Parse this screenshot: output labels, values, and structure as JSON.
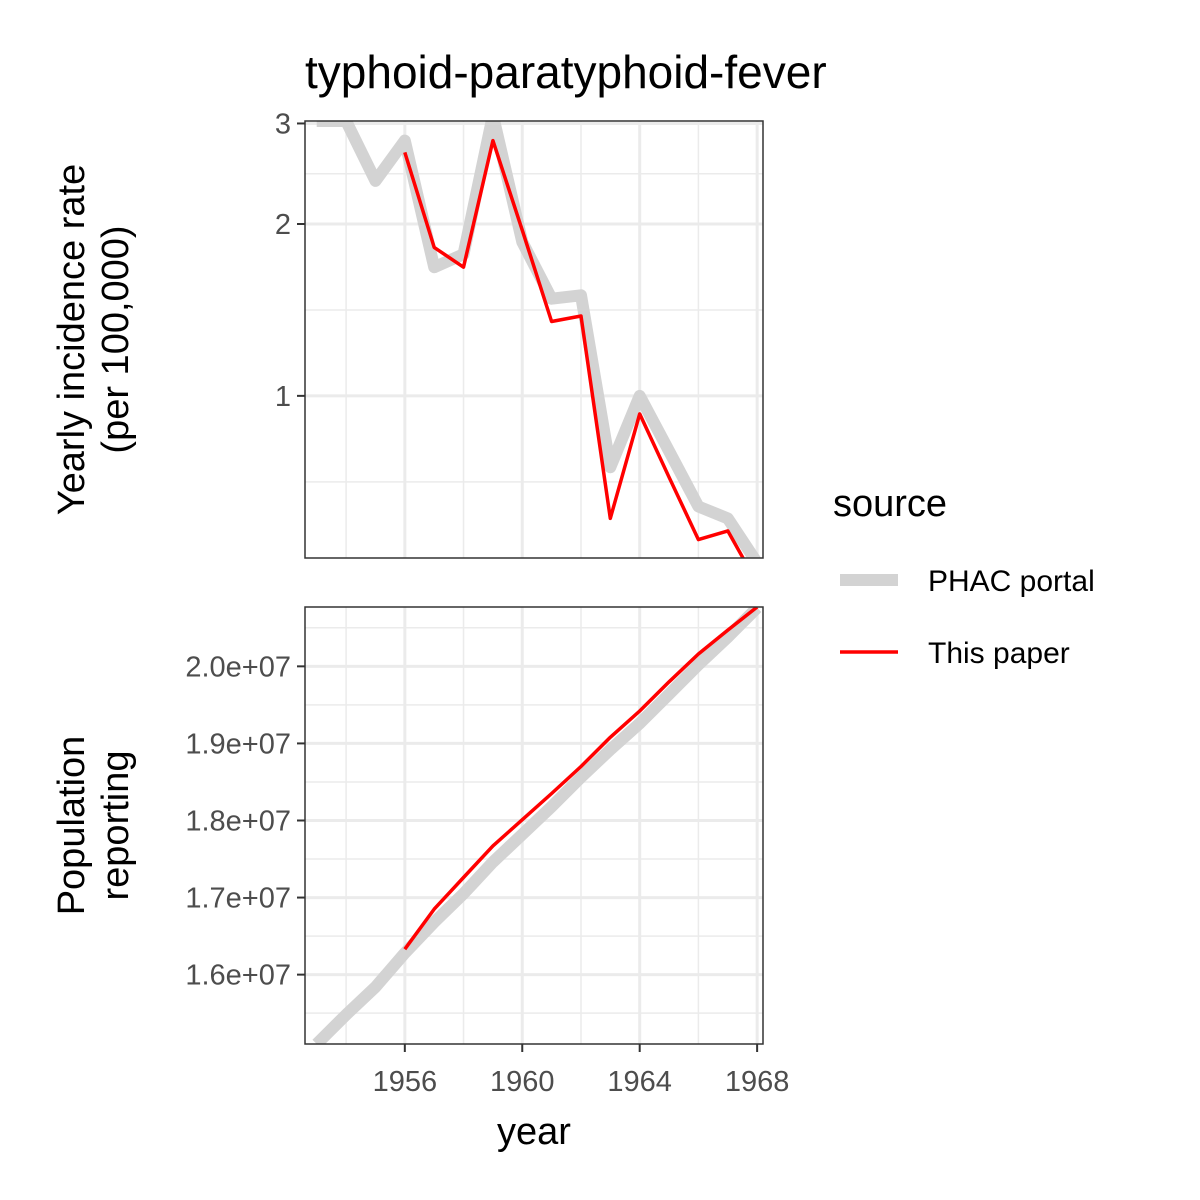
{
  "chart_data": {
    "type": "line",
    "title": "typhoid-paratyphoid-fever",
    "xlabel": "year",
    "x_ticks": [
      1956,
      1960,
      1964,
      1968
    ],
    "xlim": [
      1952.6,
      1968.2
    ],
    "legend": {
      "title": "source",
      "placement": "right",
      "entries": [
        {
          "name": "PHAC portal",
          "color": "#d3d3d3"
        },
        {
          "name": "This paper",
          "color": "#ff0000"
        }
      ]
    },
    "panels": [
      {
        "id": "incidence",
        "ylabel_lines": [
          "Yearly incidence rate",
          "(per 100,000)"
        ],
        "scale": "log",
        "ylim": [
          0.52,
          3.03
        ],
        "y_ticks": [
          1,
          2,
          3
        ],
        "y_tick_labels": [
          "1",
          "2",
          "3"
        ],
        "y_minor": [
          0.707,
          1.414,
          2.449
        ],
        "series": [
          {
            "name": "PHAC portal",
            "x": [
              1953,
              1954,
              1955,
              1956,
              1957,
              1958,
              1959,
              1960,
              1961,
              1962,
              1963,
              1964,
              1965,
              1966,
              1967,
              1968
            ],
            "y": [
              3.03,
              3.03,
              2.38,
              2.8,
              1.68,
              1.77,
              3.1,
              1.86,
              1.48,
              1.5,
              0.75,
              1.0,
              0.8,
              0.64,
              0.61,
              0.51
            ]
          },
          {
            "name": "This paper",
            "x": [
              1956,
              1957,
              1958,
              1959,
              1960,
              1961,
              1962,
              1963,
              1964,
              1965,
              1966,
              1967,
              1968
            ],
            "y": [
              2.67,
              1.82,
              1.68,
              2.8,
              1.95,
              1.35,
              1.38,
              0.61,
              0.93,
              0.72,
              0.56,
              0.58,
              0.47
            ]
          }
        ]
      },
      {
        "id": "population",
        "ylabel_lines": [
          "Population",
          "reporting"
        ],
        "scale": "linear",
        "ylim": [
          15100000,
          20770000
        ],
        "y_ticks": [
          16000000,
          17000000,
          18000000,
          19000000,
          20000000
        ],
        "y_tick_labels": [
          "1.6e+07",
          "1.7e+07",
          "1.8e+07",
          "1.9e+07",
          "2.0e+07"
        ],
        "y_minor": [
          15500000,
          16500000,
          17500000,
          18500000,
          19500000,
          20500000
        ],
        "series": [
          {
            "name": "PHAC portal",
            "x": [
              1953,
              1954,
              1955,
              1956,
              1957,
              1958,
              1959,
              1960,
              1961,
              1962,
              1963,
              1964,
              1965,
              1966,
              1967,
              1968
            ],
            "y": [
              15100000,
              15480000,
              15840000,
              16280000,
              16680000,
              17050000,
              17460000,
              17820000,
              18180000,
              18560000,
              18920000,
              19260000,
              19640000,
              20020000,
              20380000,
              20760000
            ]
          },
          {
            "name": "This paper",
            "x": [
              1956,
              1957,
              1958,
              1959,
              1960,
              1961,
              1962,
              1963,
              1964,
              1965,
              1966,
              1967,
              1968
            ],
            "y": [
              16330000,
              16850000,
              17260000,
              17670000,
              18010000,
              18350000,
              18700000,
              19080000,
              19420000,
              19800000,
              20160000,
              20470000,
              20770000
            ]
          }
        ]
      }
    ]
  }
}
